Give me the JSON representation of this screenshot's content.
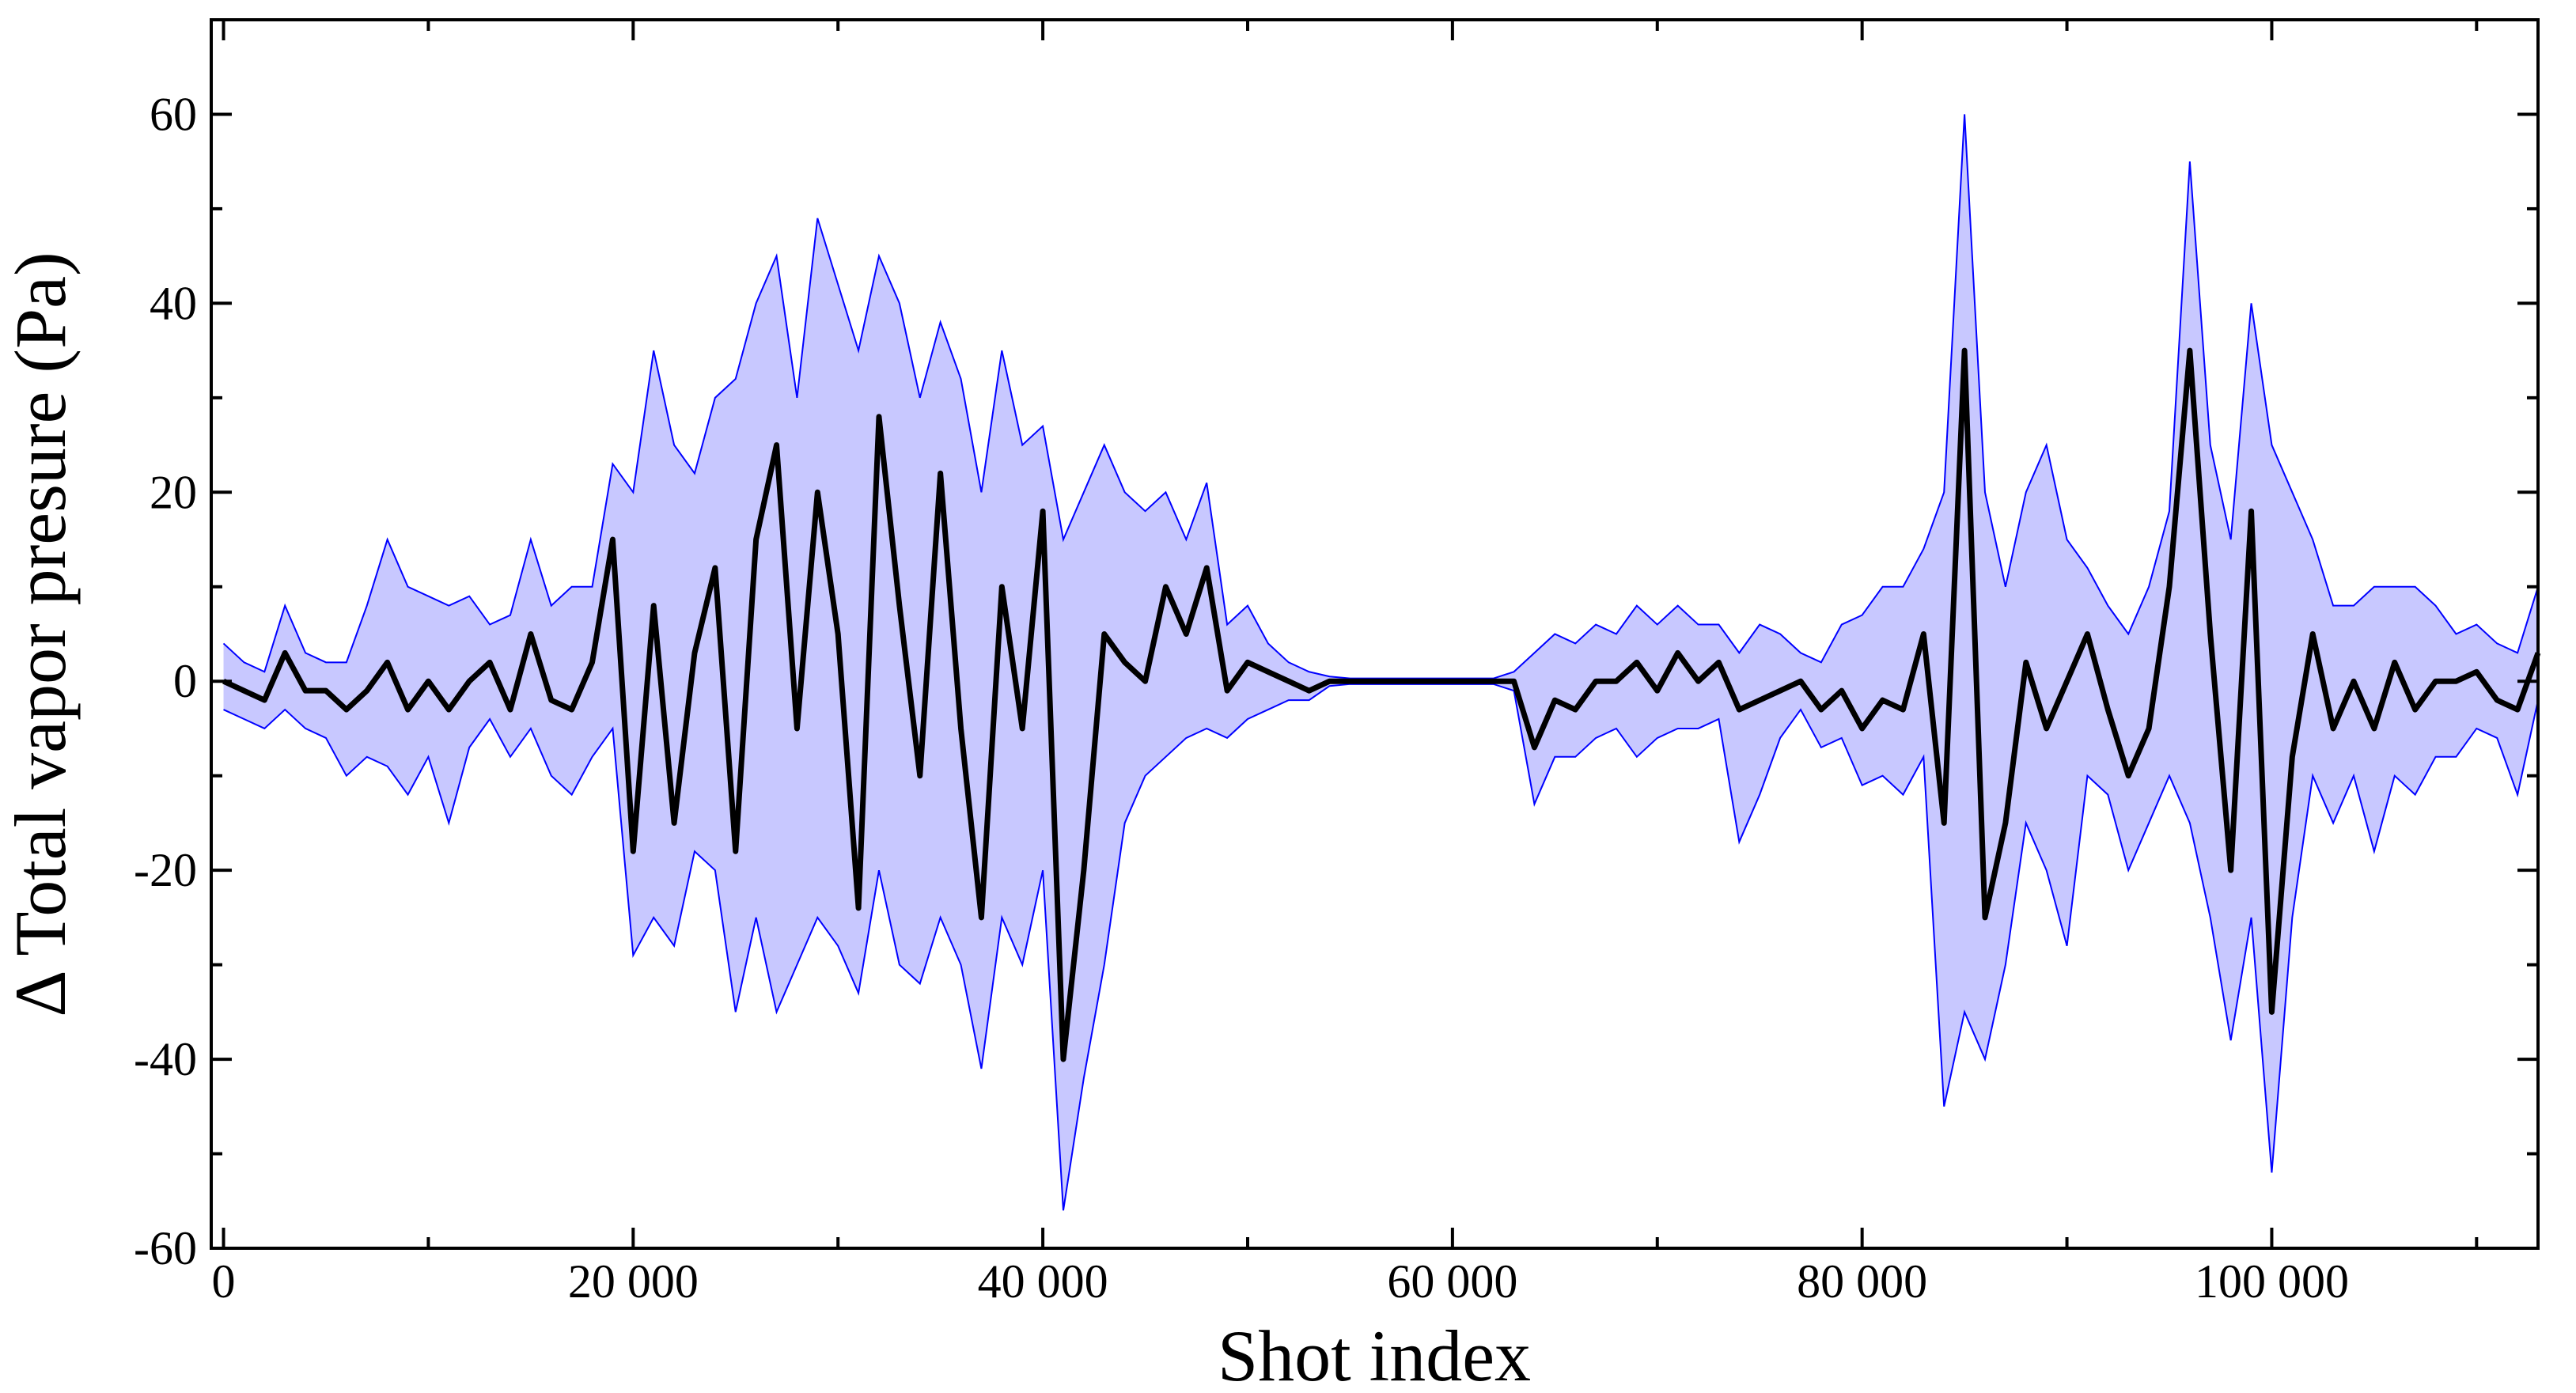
{
  "chart_data": {
    "type": "line",
    "x_label": "Shot index",
    "y_label": "Δ Total vapor presure (Pa)",
    "xlim": [
      -600,
      113000
    ],
    "ylim": [
      -60,
      70
    ],
    "xticks": [
      0,
      {
        "value": 20000,
        "label": "20 000"
      },
      {
        "value": 40000,
        "label": "40 000"
      },
      {
        "value": 60000,
        "label": "60 000"
      },
      {
        "value": 80000,
        "label": "80 000"
      },
      {
        "value": 100000,
        "label": "100 000"
      }
    ],
    "xticks_minor": [
      10000,
      30000,
      50000,
      70000,
      90000,
      110000
    ],
    "yticks": [
      -60,
      -40,
      -20,
      0,
      20,
      40,
      60
    ],
    "yticks_minor": [
      -50,
      -30,
      -10,
      10,
      30,
      50
    ],
    "x": [
      0,
      1000,
      2000,
      3000,
      4000,
      5000,
      6000,
      7000,
      8000,
      9000,
      10000,
      11000,
      12000,
      13000,
      14000,
      15000,
      16000,
      17000,
      18000,
      19000,
      20000,
      21000,
      22000,
      23000,
      24000,
      25000,
      26000,
      27000,
      28000,
      29000,
      30000,
      31000,
      32000,
      33000,
      34000,
      35000,
      36000,
      37000,
      38000,
      39000,
      40000,
      41000,
      42000,
      43000,
      44000,
      45000,
      46000,
      47000,
      48000,
      49000,
      50000,
      51000,
      52000,
      53000,
      54000,
      55000,
      56000,
      57000,
      58000,
      59000,
      60000,
      61000,
      62000,
      63000,
      64000,
      65000,
      66000,
      67000,
      68000,
      69000,
      70000,
      71000,
      72000,
      73000,
      74000,
      75000,
      76000,
      77000,
      78000,
      79000,
      80000,
      81000,
      82000,
      83000,
      84000,
      85000,
      86000,
      87000,
      88000,
      89000,
      90000,
      91000,
      92000,
      93000,
      94000,
      95000,
      96000,
      97000,
      98000,
      99000,
      100000,
      101000,
      102000,
      103000,
      104000,
      105000,
      106000,
      107000,
      108000,
      109000,
      110000,
      111000,
      112000,
      113000
    ],
    "series": [
      {
        "color": "#000000",
        "values": [
          0,
          -1,
          -2,
          3,
          -1,
          -1,
          -3,
          -1,
          2,
          -3,
          0,
          -3,
          0,
          2,
          -3,
          5,
          -2,
          -3,
          2,
          15,
          -18,
          8,
          -15,
          3,
          12,
          -18,
          15,
          25,
          -5,
          20,
          5,
          -24,
          28,
          8,
          -10,
          22,
          -5,
          -25,
          10,
          -5,
          18,
          -40,
          -20,
          5,
          2,
          0,
          10,
          5,
          12,
          -1,
          2,
          1,
          0,
          -1,
          0,
          0,
          0,
          0,
          0,
          0,
          0,
          0,
          0,
          0,
          -7,
          -2,
          -3,
          0,
          0,
          2,
          -1,
          3,
          0,
          2,
          -3,
          -2,
          -1,
          0,
          -3,
          -1,
          -5,
          -2,
          -3,
          5,
          -15,
          35,
          -25,
          -15,
          2,
          -5,
          0,
          5,
          -3,
          -10,
          -5,
          10,
          35,
          5,
          -20,
          18,
          -35,
          -8,
          5,
          -5,
          0,
          -5,
          2,
          -3,
          0,
          0,
          1,
          -2,
          -3,
          3
        ]
      }
    ],
    "band": {
      "color": "#0000ff",
      "fill": "#c8c8ff",
      "upper": [
        4,
        2,
        1,
        8,
        3,
        2,
        2,
        8,
        15,
        10,
        9,
        8,
        9,
        6,
        7,
        15,
        8,
        10,
        10,
        23,
        20,
        35,
        25,
        22,
        30,
        32,
        40,
        45,
        30,
        49,
        42,
        35,
        45,
        40,
        30,
        38,
        32,
        20,
        35,
        25,
        27,
        15,
        20,
        25,
        20,
        18,
        20,
        15,
        21,
        6,
        8,
        4,
        2,
        1,
        0.5,
        0.3,
        0.3,
        0.3,
        0.3,
        0.3,
        0.3,
        0.3,
        0.3,
        1,
        3,
        5,
        4,
        6,
        5,
        8,
        6,
        8,
        6,
        6,
        3,
        6,
        5,
        3,
        2,
        6,
        7,
        10,
        10,
        14,
        20,
        60,
        20,
        10,
        20,
        25,
        15,
        12,
        8,
        5,
        10,
        18,
        55,
        25,
        15,
        40,
        25,
        20,
        15,
        8,
        8,
        10,
        10,
        10,
        8,
        5,
        6,
        4,
        3,
        10
      ],
      "lower": [
        -3,
        -4,
        -5,
        -3,
        -5,
        -6,
        -10,
        -8,
        -9,
        -12,
        -8,
        -15,
        -7,
        -4,
        -8,
        -5,
        -10,
        -12,
        -8,
        -5,
        -29,
        -25,
        -28,
        -18,
        -20,
        -35,
        -25,
        -35,
        -30,
        -25,
        -28,
        -33,
        -20,
        -30,
        -32,
        -25,
        -30,
        -41,
        -25,
        -30,
        -20,
        -56,
        -42,
        -30,
        -15,
        -10,
        -8,
        -6,
        -5,
        -6,
        -4,
        -3,
        -2,
        -2,
        -0.5,
        -0.3,
        -0.3,
        -0.3,
        -0.3,
        -0.3,
        -0.3,
        -0.3,
        -0.3,
        -1,
        -13,
        -8,
        -8,
        -6,
        -5,
        -8,
        -6,
        -5,
        -5,
        -4,
        -17,
        -12,
        -6,
        -3,
        -7,
        -6,
        -11,
        -10,
        -12,
        -8,
        -45,
        -35,
        -40,
        -30,
        -15,
        -20,
        -28,
        -10,
        -12,
        -20,
        -15,
        -10,
        -15,
        -25,
        -38,
        -25,
        -52,
        -25,
        -10,
        -15,
        -10,
        -18,
        -10,
        -12,
        -8,
        -8,
        -5,
        -6,
        -12,
        -2
      ]
    }
  }
}
